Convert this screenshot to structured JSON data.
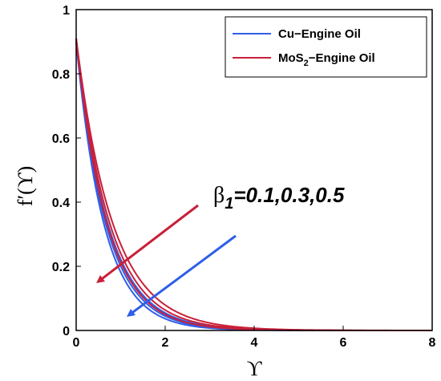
{
  "chart_data": {
    "type": "line",
    "xlabel": "ϒ",
    "ylabel": "f′(ϒ)",
    "xlim": [
      0,
      8
    ],
    "ylim": [
      0,
      1
    ],
    "x_ticks": [
      "0",
      "2",
      "4",
      "6",
      "8"
    ],
    "y_ticks": [
      "0",
      "0.2",
      "0.4",
      "0.6",
      "0.8",
      "1"
    ],
    "grid": false,
    "legend_position": "top-right",
    "legend": [
      {
        "label_main": "Cu−Engine Oil",
        "label_sub": "",
        "label_rest": "",
        "color": "#2f5fe8"
      },
      {
        "label_main": "MoS",
        "label_sub": "2",
        "label_rest": "−Engine Oil",
        "color": "#c8203a"
      }
    ],
    "annotation": {
      "symbol": "β",
      "subscript": "1",
      "text": "=0.1,0.3,0.5"
    },
    "series": [
      {
        "group": 0,
        "f0": 0.9,
        "k": 1.6,
        "color": "#2f5fe8"
      },
      {
        "group": 0,
        "f0": 0.9,
        "k": 1.5,
        "color": "#2f5fe8"
      },
      {
        "group": 0,
        "f0": 0.9,
        "k": 1.4,
        "color": "#2f5fe8"
      },
      {
        "group": 1,
        "f0": 0.91,
        "k": 1.45,
        "color": "#c8203a"
      },
      {
        "group": 1,
        "f0": 0.91,
        "k": 1.33,
        "color": "#c8203a"
      },
      {
        "group": 1,
        "f0": 0.91,
        "k": 1.22,
        "color": "#c8203a"
      }
    ]
  }
}
